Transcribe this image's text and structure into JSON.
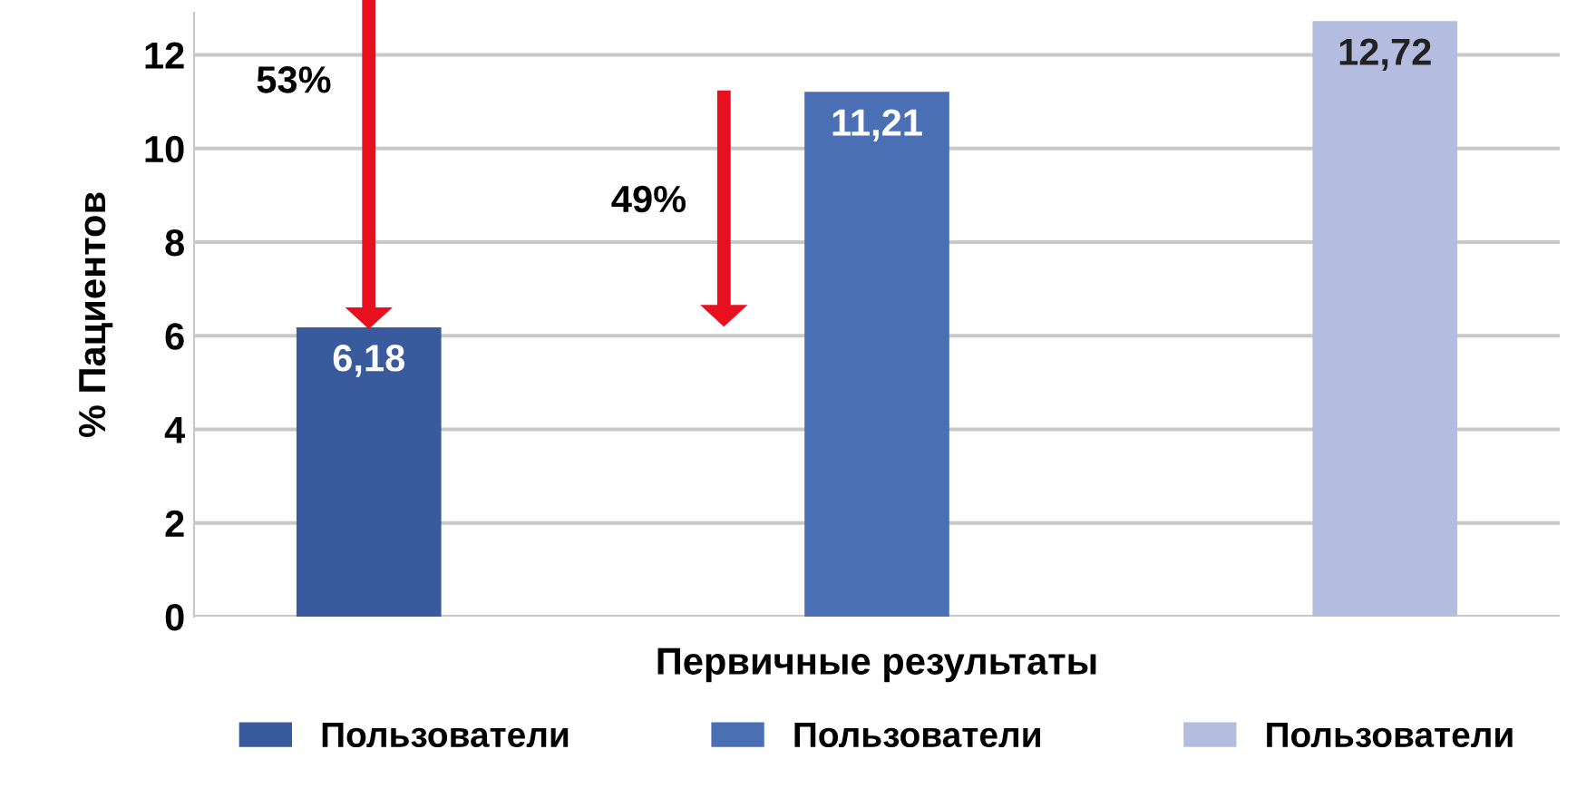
{
  "chart_data": {
    "type": "bar",
    "ylabel": "% Пациентов",
    "categories": [
      "Первичные результаты"
    ],
    "series": [
      {
        "name": "Пользователи",
        "color": "#3a5a9e",
        "values": [
          6.18
        ]
      },
      {
        "name": "Пользователи",
        "color": "#4a6fb5",
        "values": [
          11.21
        ]
      },
      {
        "name": "Пользователи",
        "color": "#b4bde0",
        "values": [
          12.72
        ]
      }
    ],
    "value_labels": [
      [
        "6,18"
      ],
      [
        "11,21"
      ],
      [
        "12,72"
      ]
    ],
    "annotations": [
      "53%",
      "49%"
    ],
    "ylim": [
      0,
      12.9
    ],
    "yticks": [
      0,
      2,
      4,
      6,
      8,
      10,
      12
    ],
    "grid": "y",
    "legend": "bottom"
  }
}
